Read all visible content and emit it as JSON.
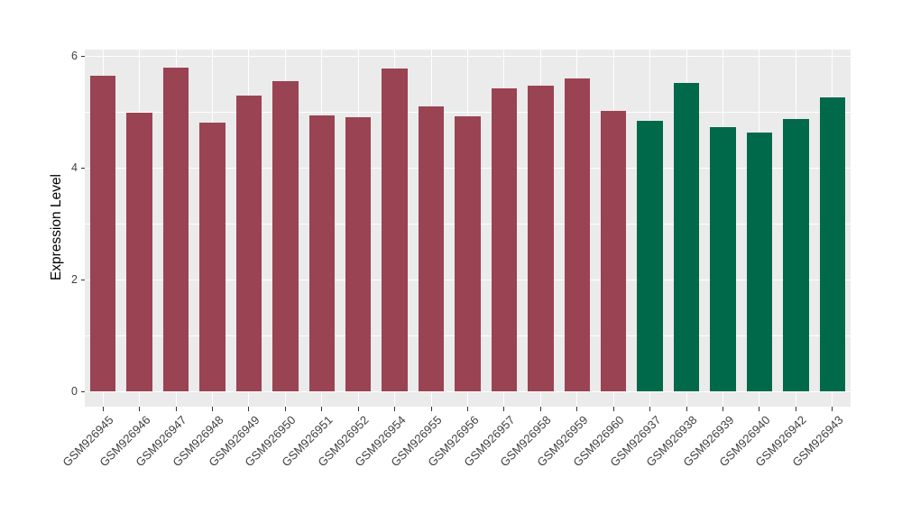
{
  "chart_data": {
    "type": "bar",
    "title": "",
    "xlabel": "",
    "ylabel": "Expression Level",
    "categories": [
      "GSM926945",
      "GSM926946",
      "GSM926947",
      "GSM926948",
      "GSM926949",
      "GSM926950",
      "GSM926951",
      "GSM926952",
      "GSM926954",
      "GSM926955",
      "GSM926956",
      "GSM926957",
      "GSM926958",
      "GSM926959",
      "GSM926960",
      "GSM926937",
      "GSM926938",
      "GSM926939",
      "GSM926940",
      "GSM926942",
      "GSM926943"
    ],
    "values": [
      5.65,
      4.99,
      5.8,
      4.81,
      5.3,
      5.55,
      4.94,
      4.91,
      5.78,
      5.1,
      4.93,
      5.43,
      5.48,
      5.6,
      5.02,
      4.84,
      5.53,
      4.73,
      4.64,
      4.87,
      5.26
    ],
    "bar_colors": [
      "#9A4352",
      "#9A4352",
      "#9A4352",
      "#9A4352",
      "#9A4352",
      "#9A4352",
      "#9A4352",
      "#9A4352",
      "#9A4352",
      "#9A4352",
      "#9A4352",
      "#9A4352",
      "#9A4352",
      "#9A4352",
      "#9A4352",
      "#00694A",
      "#00694A",
      "#00694A",
      "#00694A",
      "#00694A",
      "#00694A"
    ],
    "group_colors": {
      "left_group": "#9A4352",
      "right_group": "#00694A"
    },
    "yticks": [
      0,
      2,
      4,
      6
    ],
    "minor_gridlines": [
      1,
      3,
      5
    ],
    "ylim": [
      -0.27,
      6.12
    ],
    "bar_width_fraction": 0.7,
    "grid": "on",
    "legend": "none",
    "colors": {
      "panel_bg": "#EBEBEB",
      "gridline": "#FFFFFF",
      "tick_label": "#404040",
      "axis_title": "#000000"
    }
  }
}
